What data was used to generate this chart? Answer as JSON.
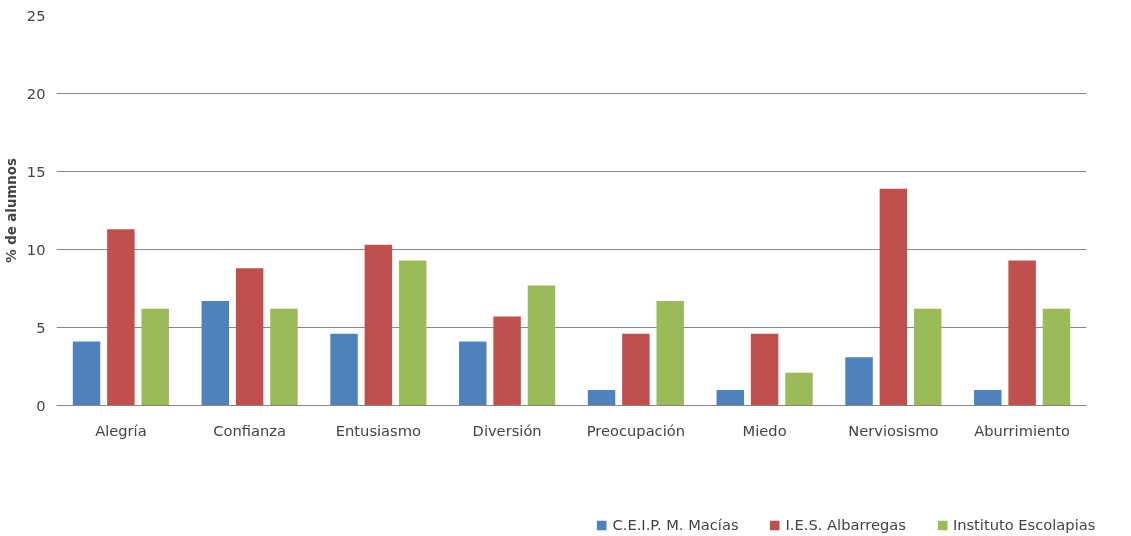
{
  "chart_data": {
    "type": "bar",
    "ylabel": "% de alumnos",
    "categories": [
      "Alegría",
      "Confianza",
      "Entusiasmo",
      "Diversión",
      "Preocupación",
      "Miedo",
      "Nerviosismo",
      "Aburrimiento"
    ],
    "series": [
      {
        "name": "C.E.I.P. M. Macías",
        "color": "#4f81bd",
        "values": [
          4.1,
          6.7,
          4.6,
          4.1,
          1.0,
          1.0,
          3.1,
          1.0
        ]
      },
      {
        "name": "I.E.S. Albarregas",
        "color": "#c0504d",
        "values": [
          11.3,
          8.8,
          10.3,
          5.7,
          4.6,
          4.6,
          13.9,
          9.3
        ]
      },
      {
        "name": "Instituto Escolapias",
        "color": "#9bbb59",
        "values": [
          6.2,
          6.2,
          9.3,
          7.7,
          6.7,
          2.1,
          6.2,
          6.2
        ]
      }
    ],
    "ylim": [
      0,
      25
    ],
    "yticks": [
      0,
      5,
      10,
      15,
      20,
      25
    ],
    "grid": "y",
    "legend": "bottom"
  }
}
